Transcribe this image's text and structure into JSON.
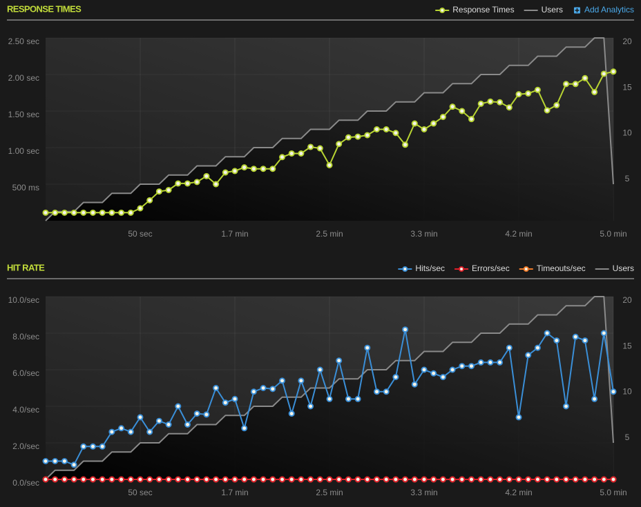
{
  "chart_data": [
    {
      "type": "line",
      "title": "RESPONSE TIMES",
      "action": "Add Analytics",
      "grid": true,
      "x": [
        0,
        5,
        10,
        15,
        20,
        25,
        30,
        35,
        40,
        45,
        50,
        55,
        60,
        65,
        70,
        75,
        80,
        85,
        90,
        95,
        100,
        105,
        110,
        115,
        120,
        125,
        130,
        135,
        140,
        145,
        150,
        155,
        160,
        165,
        170,
        175,
        180,
        185,
        190,
        195,
        200,
        205,
        210,
        215,
        220,
        225,
        230,
        235,
        240,
        245,
        250,
        255,
        260,
        265,
        270,
        275,
        280,
        285,
        290,
        295,
        300
      ],
      "xlim": [
        0,
        300
      ],
      "xticks": [
        {
          "value": 50,
          "label": "50 sec"
        },
        {
          "value": 100,
          "label": "1.7 min"
        },
        {
          "value": 150,
          "label": "2.5 min"
        },
        {
          "value": 200,
          "label": "3.3 min"
        },
        {
          "value": 250,
          "label": "4.2 min"
        },
        {
          "value": 300,
          "label": "5.0 min"
        }
      ],
      "ylim": [
        0,
        2.5
      ],
      "yticks": [
        {
          "value": 0.5,
          "label": "500 ms"
        },
        {
          "value": 1,
          "label": "1.00 sec"
        },
        {
          "value": 1.5,
          "label": "1.50 sec"
        },
        {
          "value": 2,
          "label": "2.00 sec"
        },
        {
          "value": 2.5,
          "label": "2.50 sec"
        }
      ],
      "y2lim": [
        0,
        20
      ],
      "y2ticks": [
        5,
        10,
        15,
        20
      ],
      "series": [
        {
          "name": "Response Times",
          "color": "#b8d432",
          "marker": true,
          "values": [
            0.11,
            0.11,
            0.11,
            0.11,
            0.11,
            0.11,
            0.11,
            0.11,
            0.11,
            0.11,
            0.17,
            0.28,
            0.4,
            0.42,
            0.51,
            0.51,
            0.53,
            0.61,
            0.5,
            0.66,
            0.68,
            0.73,
            0.71,
            0.71,
            0.71,
            0.87,
            0.92,
            0.92,
            1.01,
            0.99,
            0.76,
            1.05,
            1.14,
            1.15,
            1.17,
            1.25,
            1.25,
            1.2,
            1.04,
            1.33,
            1.25,
            1.33,
            1.42,
            1.56,
            1.5,
            1.39,
            1.6,
            1.63,
            1.62,
            1.55,
            1.73,
            1.74,
            1.79,
            1.51,
            1.58,
            1.87,
            1.87,
            1.95,
            1.76,
            2.01,
            2.04
          ]
        },
        {
          "name": "Users",
          "color": "#8a8a8a",
          "marker": false,
          "axis": "y2",
          "values": [
            0,
            1,
            1,
            1,
            2,
            2,
            2,
            3,
            3,
            3,
            4,
            4,
            4,
            5,
            5,
            5,
            6,
            6,
            6,
            7,
            7,
            7,
            8,
            8,
            8,
            9,
            9,
            9,
            10,
            10,
            10,
            11,
            11,
            11,
            12,
            12,
            12,
            13,
            13,
            13,
            14,
            14,
            14,
            15,
            15,
            15,
            16,
            16,
            16,
            17,
            17,
            17,
            18,
            18,
            18,
            19,
            19,
            19,
            20,
            20,
            4
          ]
        }
      ]
    },
    {
      "type": "line",
      "title": "HIT RATE",
      "grid": true,
      "x": [
        0,
        5,
        10,
        15,
        20,
        25,
        30,
        35,
        40,
        45,
        50,
        55,
        60,
        65,
        70,
        75,
        80,
        85,
        90,
        95,
        100,
        105,
        110,
        115,
        120,
        125,
        130,
        135,
        140,
        145,
        150,
        155,
        160,
        165,
        170,
        175,
        180,
        185,
        190,
        195,
        200,
        205,
        210,
        215,
        220,
        225,
        230,
        235,
        240,
        245,
        250,
        255,
        260,
        265,
        270,
        275,
        280,
        285,
        290,
        295,
        300
      ],
      "xlim": [
        0,
        300
      ],
      "xticks": [
        {
          "value": 50,
          "label": "50 sec"
        },
        {
          "value": 100,
          "label": "1.7 min"
        },
        {
          "value": 150,
          "label": "2.5 min"
        },
        {
          "value": 200,
          "label": "3.3 min"
        },
        {
          "value": 250,
          "label": "4.2 min"
        },
        {
          "value": 300,
          "label": "5.0 min"
        }
      ],
      "ylim": [
        0,
        10
      ],
      "yticks": [
        {
          "value": 0,
          "label": "0.0/sec"
        },
        {
          "value": 2,
          "label": "2.0/sec"
        },
        {
          "value": 4,
          "label": "4.0/sec"
        },
        {
          "value": 6,
          "label": "6.0/sec"
        },
        {
          "value": 8,
          "label": "8.0/sec"
        },
        {
          "value": 10,
          "label": "10.0/sec"
        }
      ],
      "y2lim": [
        0,
        20
      ],
      "y2ticks": [
        5,
        10,
        15,
        20
      ],
      "series": [
        {
          "name": "Hits/sec",
          "color": "#3a8fd8",
          "marker": true,
          "values": [
            1.0,
            1.0,
            1.0,
            0.8,
            1.8,
            1.8,
            1.8,
            2.6,
            2.8,
            2.6,
            3.4,
            2.6,
            3.2,
            3.0,
            4.0,
            3.0,
            3.6,
            3.55,
            5.0,
            4.2,
            4.4,
            2.8,
            4.8,
            5.0,
            4.95,
            5.4,
            3.6,
            5.4,
            4.0,
            6.0,
            4.4,
            6.5,
            4.4,
            4.4,
            7.2,
            4.8,
            4.8,
            5.6,
            8.2,
            5.2,
            6.0,
            5.8,
            5.6,
            6.0,
            6.2,
            6.2,
            6.4,
            6.4,
            6.4,
            7.2,
            3.4,
            6.8,
            7.2,
            8.0,
            7.6,
            4.0,
            7.8,
            7.6,
            4.4,
            8.0,
            4.8
          ]
        },
        {
          "name": "Errors/sec",
          "color": "#e0202a",
          "marker": true,
          "values": [
            0,
            0,
            0,
            0,
            0,
            0,
            0,
            0,
            0,
            0,
            0,
            0,
            0,
            0,
            0,
            0,
            0,
            0,
            0,
            0,
            0,
            0,
            0,
            0,
            0,
            0,
            0,
            0,
            0,
            0,
            0,
            0,
            0,
            0,
            0,
            0,
            0,
            0,
            0,
            0,
            0,
            0,
            0,
            0,
            0,
            0,
            0,
            0,
            0,
            0,
            0,
            0,
            0,
            0,
            0,
            0,
            0,
            0,
            0,
            0,
            0
          ]
        },
        {
          "name": "Timeouts/sec",
          "color": "#f07a28",
          "marker": true,
          "values": [
            0,
            0,
            0,
            0,
            0,
            0,
            0,
            0,
            0,
            0,
            0,
            0,
            0,
            0,
            0,
            0,
            0,
            0,
            0,
            0,
            0,
            0,
            0,
            0,
            0,
            0,
            0,
            0,
            0,
            0,
            0,
            0,
            0,
            0,
            0,
            0,
            0,
            0,
            0,
            0,
            0,
            0,
            0,
            0,
            0,
            0,
            0,
            0,
            0,
            0,
            0,
            0,
            0,
            0,
            0,
            0,
            0,
            0,
            0,
            0,
            0
          ]
        },
        {
          "name": "Users",
          "color": "#8a8a8a",
          "marker": false,
          "axis": "y2",
          "values": [
            0,
            1,
            1,
            1,
            2,
            2,
            2,
            3,
            3,
            3,
            4,
            4,
            4,
            5,
            5,
            5,
            6,
            6,
            6,
            7,
            7,
            7,
            8,
            8,
            8,
            9,
            9,
            9,
            10,
            10,
            10,
            11,
            11,
            11,
            12,
            12,
            12,
            13,
            13,
            13,
            14,
            14,
            14,
            15,
            15,
            15,
            16,
            16,
            16,
            17,
            17,
            17,
            18,
            18,
            18,
            19,
            19,
            19,
            20,
            20,
            4
          ]
        }
      ]
    }
  ]
}
